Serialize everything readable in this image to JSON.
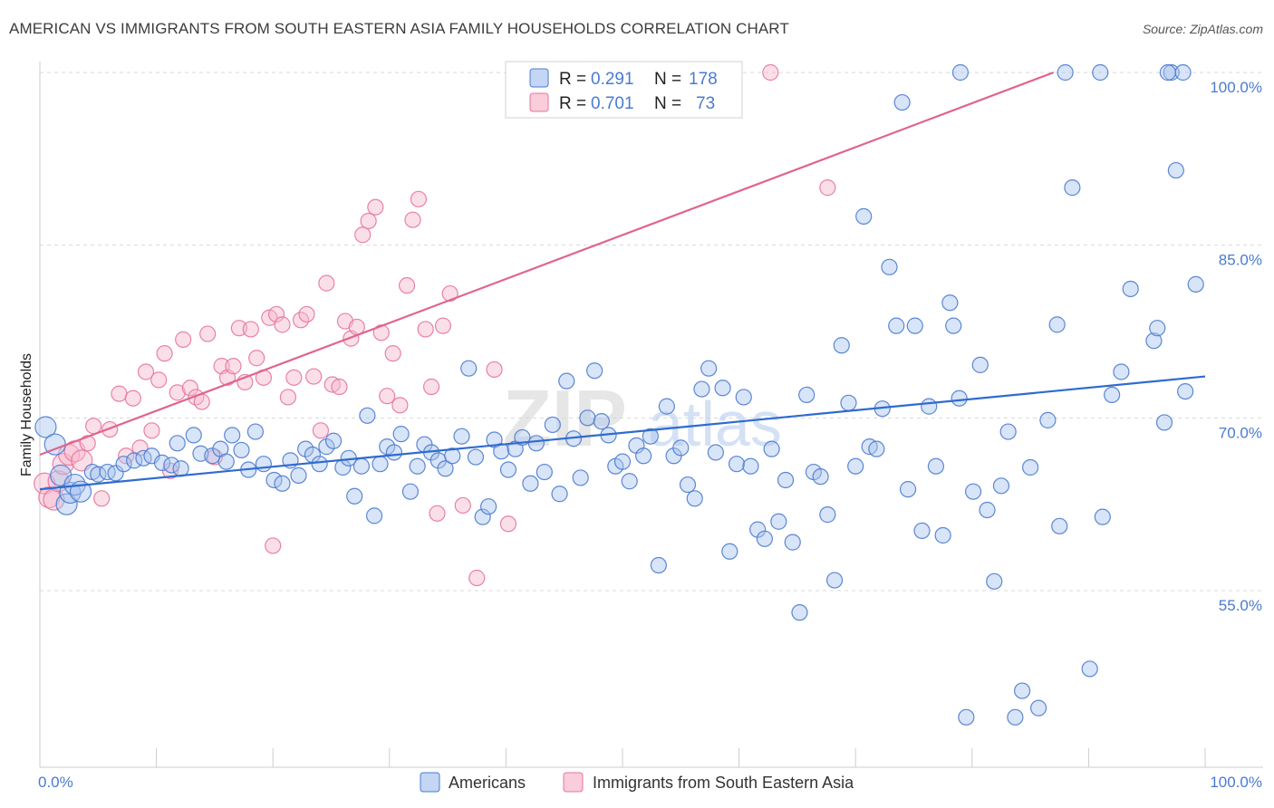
{
  "title": "AMERICAN VS IMMIGRANTS FROM SOUTH EASTERN ASIA FAMILY HOUSEHOLDS CORRELATION CHART",
  "source": "Source: ZipAtlas.com",
  "watermark": {
    "zip": "ZIP",
    "atlas": "atlas"
  },
  "colors": {
    "blue": "#4a7bd0",
    "pink": "#e8749c",
    "blue_fill": "#a9c4ee",
    "pink_fill": "#f6b8cb"
  },
  "legend": {
    "r_label": "R =",
    "n_label": "N =",
    "rows": [
      {
        "r": "0.291",
        "n": "178"
      },
      {
        "r": "0.701",
        "n": "73"
      }
    ]
  },
  "bottom_legend": [
    "Americans",
    "Immigrants from South Eastern Asia"
  ],
  "chart_data": {
    "type": "scatter",
    "ylabel": "Family Households",
    "xlim": [
      0,
      100
    ],
    "ylim": [
      40,
      104
    ],
    "x_tick_labels": [
      "0.0%",
      "100.0%"
    ],
    "y_ticks": [
      55,
      70,
      85,
      100
    ],
    "y_tick_labels": [
      "55.0%",
      "70.0%",
      "85.0%",
      "100.0%"
    ],
    "grid": true,
    "legend_position": "top-center",
    "series": [
      {
        "name": "Americans",
        "r": 0.291,
        "n": 178,
        "trend": [
          [
            0,
            63.8
          ],
          [
            100,
            73.6
          ]
        ],
        "points": [
          [
            0.5,
            69.2
          ],
          [
            1.3,
            67.7
          ],
          [
            1.8,
            65.0
          ],
          [
            2.3,
            62.5
          ],
          [
            2.6,
            63.5
          ],
          [
            3.0,
            64.2
          ],
          [
            3.5,
            63.6
          ],
          [
            4.5,
            65.3
          ],
          [
            5.0,
            65.1
          ],
          [
            5.8,
            65.3
          ],
          [
            6.5,
            65.2
          ],
          [
            7.2,
            66.0
          ],
          [
            8.1,
            66.3
          ],
          [
            8.9,
            66.5
          ],
          [
            9.6,
            66.7
          ],
          [
            10.5,
            66.1
          ],
          [
            11.3,
            65.9
          ],
          [
            12.1,
            65.6
          ],
          [
            11.8,
            67.8
          ],
          [
            13.2,
            68.5
          ],
          [
            13.8,
            66.9
          ],
          [
            14.8,
            66.7
          ],
          [
            15.5,
            67.3
          ],
          [
            16.0,
            66.2
          ],
          [
            16.5,
            68.5
          ],
          [
            17.3,
            67.2
          ],
          [
            17.9,
            65.5
          ],
          [
            18.5,
            68.8
          ],
          [
            19.2,
            66.0
          ],
          [
            20.1,
            64.6
          ],
          [
            20.8,
            64.3
          ],
          [
            21.5,
            66.3
          ],
          [
            22.2,
            65.0
          ],
          [
            22.8,
            67.3
          ],
          [
            23.4,
            66.8
          ],
          [
            24.0,
            66.0
          ],
          [
            24.6,
            67.5
          ],
          [
            25.2,
            68.0
          ],
          [
            26.0,
            65.7
          ],
          [
            26.5,
            66.5
          ],
          [
            27.0,
            63.2
          ],
          [
            27.6,
            65.8
          ],
          [
            28.1,
            70.2
          ],
          [
            28.7,
            61.5
          ],
          [
            29.2,
            66.0
          ],
          [
            29.8,
            67.5
          ],
          [
            30.4,
            67.0
          ],
          [
            31.0,
            68.6
          ],
          [
            31.8,
            63.6
          ],
          [
            32.4,
            65.8
          ],
          [
            33.0,
            67.7
          ],
          [
            33.6,
            67.0
          ],
          [
            34.2,
            66.3
          ],
          [
            34.8,
            65.6
          ],
          [
            35.4,
            66.7
          ],
          [
            36.2,
            68.4
          ],
          [
            36.8,
            74.3
          ],
          [
            37.4,
            66.6
          ],
          [
            38.0,
            61.4
          ],
          [
            38.5,
            62.3
          ],
          [
            39.0,
            68.1
          ],
          [
            39.6,
            67.1
          ],
          [
            40.2,
            65.5
          ],
          [
            40.8,
            67.3
          ],
          [
            41.4,
            68.3
          ],
          [
            42.1,
            64.3
          ],
          [
            42.6,
            67.8
          ],
          [
            43.3,
            65.3
          ],
          [
            44.0,
            69.4
          ],
          [
            44.6,
            63.4
          ],
          [
            45.2,
            73.2
          ],
          [
            45.8,
            68.2
          ],
          [
            46.4,
            64.8
          ],
          [
            47.0,
            70.0
          ],
          [
            47.6,
            74.1
          ],
          [
            48.2,
            69.7
          ],
          [
            48.8,
            68.5
          ],
          [
            49.4,
            65.8
          ],
          [
            50.0,
            66.2
          ],
          [
            50.6,
            64.5
          ],
          [
            51.2,
            67.6
          ],
          [
            51.8,
            66.7
          ],
          [
            52.4,
            68.4
          ],
          [
            53.1,
            57.2
          ],
          [
            53.8,
            71.0
          ],
          [
            54.4,
            66.7
          ],
          [
            55.0,
            67.4
          ],
          [
            55.6,
            64.2
          ],
          [
            56.2,
            63.0
          ],
          [
            56.8,
            72.5
          ],
          [
            57.4,
            74.3
          ],
          [
            58.0,
            67.0
          ],
          [
            58.6,
            72.6
          ],
          [
            59.2,
            58.4
          ],
          [
            59.8,
            66.0
          ],
          [
            60.4,
            71.8
          ],
          [
            61.0,
            65.8
          ],
          [
            61.6,
            60.3
          ],
          [
            62.2,
            59.5
          ],
          [
            62.8,
            67.3
          ],
          [
            63.4,
            61.0
          ],
          [
            64.0,
            64.6
          ],
          [
            64.6,
            59.2
          ],
          [
            65.2,
            53.1
          ],
          [
            65.8,
            72.0
          ],
          [
            66.4,
            65.3
          ],
          [
            67.0,
            64.9
          ],
          [
            67.6,
            61.6
          ],
          [
            68.2,
            55.9
          ],
          [
            68.8,
            76.3
          ],
          [
            69.4,
            71.3
          ],
          [
            70.0,
            65.8
          ],
          [
            70.7,
            87.5
          ],
          [
            71.2,
            67.5
          ],
          [
            71.8,
            67.3
          ],
          [
            72.3,
            70.8
          ],
          [
            72.9,
            83.1
          ],
          [
            73.5,
            78.0
          ],
          [
            74.0,
            97.4
          ],
          [
            74.5,
            63.8
          ],
          [
            75.1,
            78.0
          ],
          [
            75.7,
            60.2
          ],
          [
            76.3,
            71.0
          ],
          [
            76.9,
            65.8
          ],
          [
            77.5,
            59.8
          ],
          [
            78.1,
            80.0
          ],
          [
            78.4,
            78.0
          ],
          [
            78.9,
            71.7
          ],
          [
            79.5,
            44.0
          ],
          [
            80.1,
            63.6
          ],
          [
            80.7,
            74.6
          ],
          [
            81.3,
            62.0
          ],
          [
            81.9,
            55.8
          ],
          [
            82.5,
            64.1
          ],
          [
            83.1,
            68.8
          ],
          [
            83.7,
            44.0
          ],
          [
            84.3,
            46.3
          ],
          [
            85.0,
            65.7
          ],
          [
            85.7,
            44.8
          ],
          [
            86.5,
            69.8
          ],
          [
            87.3,
            78.1
          ],
          [
            88.6,
            90.0
          ],
          [
            90.1,
            48.2
          ],
          [
            91.2,
            61.4
          ],
          [
            92.0,
            72.0
          ],
          [
            93.6,
            81.2
          ],
          [
            95.6,
            76.7
          ],
          [
            95.9,
            77.8
          ],
          [
            96.5,
            69.6
          ],
          [
            97.1,
            100.0
          ],
          [
            98.1,
            100.0
          ],
          [
            91.0,
            100.0
          ],
          [
            88.0,
            100.0
          ],
          [
            79.0,
            100.0
          ],
          [
            87.5,
            60.6
          ],
          [
            92.8,
            74.0
          ],
          [
            96.8,
            100.0
          ],
          [
            97.5,
            91.5
          ],
          [
            98.3,
            72.3
          ],
          [
            99.2,
            81.6
          ]
        ]
      },
      {
        "name": "Immigrants from South Eastern Asia",
        "r": 0.701,
        "n": 73,
        "trend": [
          [
            0,
            66.8
          ],
          [
            87,
            100.0
          ]
        ],
        "points": [
          [
            0.4,
            64.3
          ],
          [
            0.8,
            63.1
          ],
          [
            1.2,
            62.9
          ],
          [
            1.6,
            64.5
          ],
          [
            2.0,
            66.0
          ],
          [
            2.5,
            66.8
          ],
          [
            3.0,
            67.1
          ],
          [
            3.6,
            66.3
          ],
          [
            4.1,
            67.8
          ],
          [
            4.6,
            69.3
          ],
          [
            5.3,
            63.0
          ],
          [
            6.0,
            69.0
          ],
          [
            6.8,
            72.1
          ],
          [
            7.4,
            66.7
          ],
          [
            8.0,
            71.7
          ],
          [
            8.6,
            67.4
          ],
          [
            9.1,
            74.0
          ],
          [
            9.6,
            68.9
          ],
          [
            10.2,
            73.3
          ],
          [
            10.7,
            75.6
          ],
          [
            11.2,
            65.4
          ],
          [
            11.8,
            72.2
          ],
          [
            12.3,
            76.8
          ],
          [
            12.9,
            72.6
          ],
          [
            13.4,
            71.8
          ],
          [
            13.9,
            71.4
          ],
          [
            14.4,
            77.3
          ],
          [
            15.0,
            66.6
          ],
          [
            15.6,
            74.5
          ],
          [
            16.1,
            73.5
          ],
          [
            16.6,
            74.5
          ],
          [
            17.1,
            77.8
          ],
          [
            17.6,
            73.1
          ],
          [
            18.1,
            77.7
          ],
          [
            18.6,
            75.2
          ],
          [
            19.2,
            73.5
          ],
          [
            19.7,
            78.7
          ],
          [
            20.3,
            79.0
          ],
          [
            20.8,
            78.1
          ],
          [
            21.3,
            71.8
          ],
          [
            21.8,
            73.5
          ],
          [
            22.4,
            78.5
          ],
          [
            22.9,
            79.0
          ],
          [
            23.5,
            73.6
          ],
          [
            24.1,
            68.9
          ],
          [
            24.6,
            81.7
          ],
          [
            25.1,
            72.9
          ],
          [
            25.7,
            72.7
          ],
          [
            26.2,
            78.4
          ],
          [
            26.7,
            76.9
          ],
          [
            27.2,
            77.9
          ],
          [
            27.7,
            85.9
          ],
          [
            28.2,
            87.1
          ],
          [
            28.8,
            88.3
          ],
          [
            29.3,
            77.4
          ],
          [
            29.8,
            71.9
          ],
          [
            30.3,
            75.6
          ],
          [
            30.9,
            71.1
          ],
          [
            31.5,
            81.5
          ],
          [
            32.0,
            87.2
          ],
          [
            32.5,
            89.0
          ],
          [
            33.1,
            77.7
          ],
          [
            33.6,
            72.7
          ],
          [
            34.1,
            61.7
          ],
          [
            34.6,
            78.0
          ],
          [
            35.2,
            80.8
          ],
          [
            36.3,
            62.4
          ],
          [
            37.5,
            56.1
          ],
          [
            39.0,
            74.2
          ],
          [
            40.2,
            60.8
          ],
          [
            20.0,
            58.9
          ],
          [
            62.7,
            100.0
          ],
          [
            67.6,
            90.0
          ]
        ]
      }
    ]
  }
}
